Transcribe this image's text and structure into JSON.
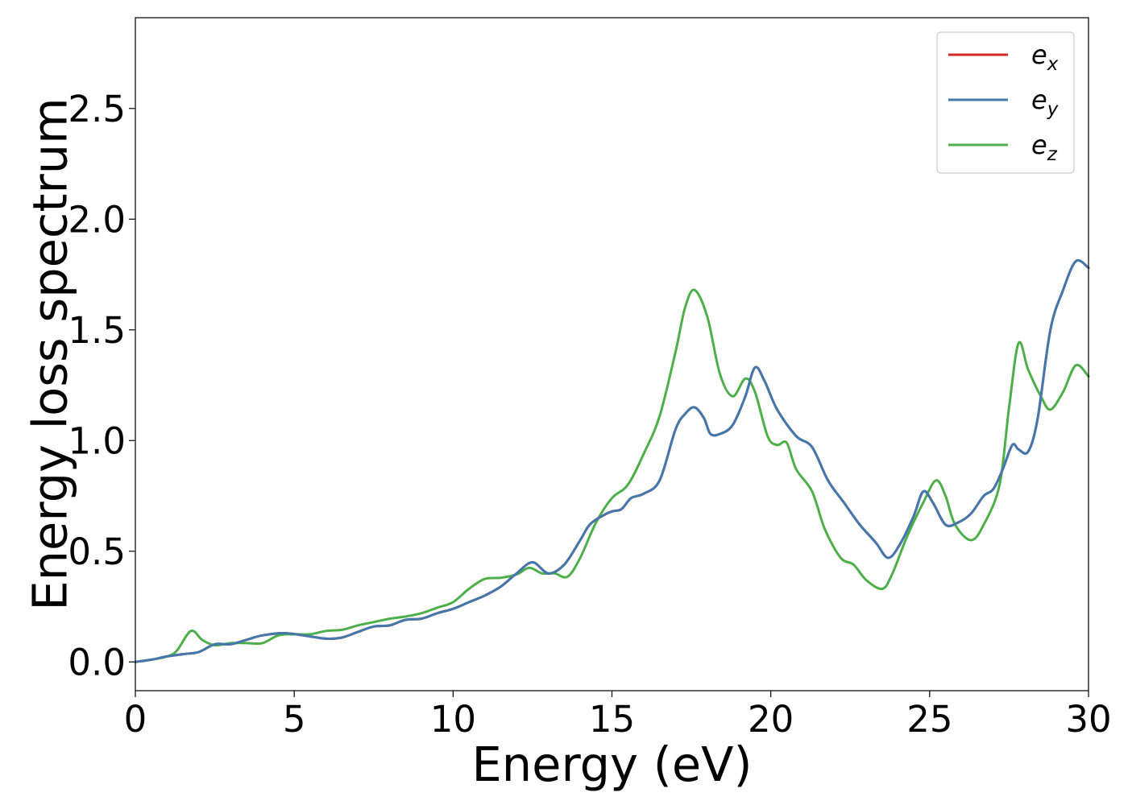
{
  "chart_data": {
    "type": "line",
    "title": "",
    "xlabel": "Energy (eV)",
    "ylabel": "Energy loss spectrum",
    "xlim": [
      0,
      30
    ],
    "ylim": [
      -0.13,
      2.91
    ],
    "xticks": [
      0,
      5,
      10,
      15,
      20,
      25,
      30
    ],
    "xtick_labels": [
      "0",
      "5",
      "10",
      "15",
      "20",
      "25",
      "30"
    ],
    "yticks": [
      0.0,
      0.5,
      1.0,
      1.5,
      2.0,
      2.5
    ],
    "ytick_labels": [
      "0.0",
      "0.5",
      "1.0",
      "1.5",
      "2.0",
      "2.5"
    ],
    "grid": false,
    "legend": {
      "position": "top-right"
    },
    "series": [
      {
        "name_main": "e",
        "name_sub": "x",
        "color": "#d62728",
        "points": [
          [
            0,
            0.0
          ],
          [
            0.5,
            0.01
          ],
          [
            1,
            0.025
          ],
          [
            1.5,
            0.035
          ],
          [
            2,
            0.045
          ],
          [
            2.5,
            0.08
          ],
          [
            3,
            0.08
          ],
          [
            3.5,
            0.1
          ],
          [
            4,
            0.12
          ],
          [
            4.7,
            0.13
          ],
          [
            5.5,
            0.115
          ],
          [
            6,
            0.105
          ],
          [
            6.5,
            0.11
          ],
          [
            7,
            0.135
          ],
          [
            7.5,
            0.16
          ],
          [
            8,
            0.165
          ],
          [
            8.5,
            0.19
          ],
          [
            9,
            0.195
          ],
          [
            9.5,
            0.22
          ],
          [
            10,
            0.24
          ],
          [
            10.5,
            0.27
          ],
          [
            11,
            0.3
          ],
          [
            11.5,
            0.34
          ],
          [
            12,
            0.4
          ],
          [
            12.5,
            0.45
          ],
          [
            13,
            0.4
          ],
          [
            13.5,
            0.44
          ],
          [
            14,
            0.55
          ],
          [
            14.3,
            0.62
          ],
          [
            14.7,
            0.66
          ],
          [
            15,
            0.68
          ],
          [
            15.3,
            0.69
          ],
          [
            15.6,
            0.74
          ],
          [
            16,
            0.76
          ],
          [
            16.5,
            0.82
          ],
          [
            17,
            1.05
          ],
          [
            17.3,
            1.12
          ],
          [
            17.6,
            1.15
          ],
          [
            17.9,
            1.1
          ],
          [
            18.1,
            1.03
          ],
          [
            18.4,
            1.03
          ],
          [
            18.8,
            1.07
          ],
          [
            19.2,
            1.2
          ],
          [
            19.5,
            1.33
          ],
          [
            19.8,
            1.27
          ],
          [
            20.2,
            1.14
          ],
          [
            20.8,
            1.02
          ],
          [
            21.3,
            0.97
          ],
          [
            21.8,
            0.82
          ],
          [
            22.3,
            0.72
          ],
          [
            22.8,
            0.62
          ],
          [
            23.3,
            0.54
          ],
          [
            23.7,
            0.47
          ],
          [
            24.1,
            0.54
          ],
          [
            24.5,
            0.66
          ],
          [
            24.8,
            0.77
          ],
          [
            25.1,
            0.72
          ],
          [
            25.5,
            0.62
          ],
          [
            25.9,
            0.63
          ],
          [
            26.3,
            0.67
          ],
          [
            26.7,
            0.75
          ],
          [
            27,
            0.78
          ],
          [
            27.3,
            0.87
          ],
          [
            27.6,
            0.98
          ],
          [
            27.8,
            0.96
          ],
          [
            28.1,
            0.95
          ],
          [
            28.4,
            1.1
          ],
          [
            28.8,
            1.5
          ],
          [
            29.2,
            1.68
          ],
          [
            29.6,
            1.81
          ],
          [
            30,
            1.78
          ]
        ]
      },
      {
        "name_main": "e",
        "name_sub": "y",
        "color": "#4378ac",
        "points": [
          [
            0,
            0.0
          ],
          [
            0.5,
            0.01
          ],
          [
            1,
            0.025
          ],
          [
            1.5,
            0.035
          ],
          [
            2,
            0.045
          ],
          [
            2.5,
            0.08
          ],
          [
            3,
            0.08
          ],
          [
            3.5,
            0.1
          ],
          [
            4,
            0.12
          ],
          [
            4.7,
            0.13
          ],
          [
            5.5,
            0.115
          ],
          [
            6,
            0.105
          ],
          [
            6.5,
            0.11
          ],
          [
            7,
            0.135
          ],
          [
            7.5,
            0.16
          ],
          [
            8,
            0.165
          ],
          [
            8.5,
            0.19
          ],
          [
            9,
            0.195
          ],
          [
            9.5,
            0.22
          ],
          [
            10,
            0.24
          ],
          [
            10.5,
            0.27
          ],
          [
            11,
            0.3
          ],
          [
            11.5,
            0.34
          ],
          [
            12,
            0.4
          ],
          [
            12.5,
            0.45
          ],
          [
            13,
            0.4
          ],
          [
            13.5,
            0.44
          ],
          [
            14,
            0.55
          ],
          [
            14.3,
            0.62
          ],
          [
            14.7,
            0.66
          ],
          [
            15,
            0.68
          ],
          [
            15.3,
            0.69
          ],
          [
            15.6,
            0.74
          ],
          [
            16,
            0.76
          ],
          [
            16.5,
            0.82
          ],
          [
            17,
            1.05
          ],
          [
            17.3,
            1.12
          ],
          [
            17.6,
            1.15
          ],
          [
            17.9,
            1.1
          ],
          [
            18.1,
            1.03
          ],
          [
            18.4,
            1.03
          ],
          [
            18.8,
            1.07
          ],
          [
            19.2,
            1.2
          ],
          [
            19.5,
            1.33
          ],
          [
            19.8,
            1.27
          ],
          [
            20.2,
            1.14
          ],
          [
            20.8,
            1.02
          ],
          [
            21.3,
            0.97
          ],
          [
            21.8,
            0.82
          ],
          [
            22.3,
            0.72
          ],
          [
            22.8,
            0.62
          ],
          [
            23.3,
            0.54
          ],
          [
            23.7,
            0.47
          ],
          [
            24.1,
            0.54
          ],
          [
            24.5,
            0.66
          ],
          [
            24.8,
            0.77
          ],
          [
            25.1,
            0.72
          ],
          [
            25.5,
            0.62
          ],
          [
            25.9,
            0.63
          ],
          [
            26.3,
            0.67
          ],
          [
            26.7,
            0.75
          ],
          [
            27,
            0.78
          ],
          [
            27.3,
            0.87
          ],
          [
            27.6,
            0.98
          ],
          [
            27.8,
            0.96
          ],
          [
            28.1,
            0.95
          ],
          [
            28.4,
            1.1
          ],
          [
            28.8,
            1.5
          ],
          [
            29.2,
            1.68
          ],
          [
            29.6,
            1.81
          ],
          [
            30,
            1.78
          ]
        ]
      },
      {
        "name_main": "e",
        "name_sub": "z",
        "color": "#4daf4a",
        "points": [
          [
            0,
            0.0
          ],
          [
            0.5,
            0.01
          ],
          [
            1,
            0.025
          ],
          [
            1.3,
            0.05
          ],
          [
            1.75,
            0.14
          ],
          [
            2.1,
            0.1
          ],
          [
            2.5,
            0.075
          ],
          [
            3,
            0.085
          ],
          [
            3.5,
            0.085
          ],
          [
            4,
            0.085
          ],
          [
            4.5,
            0.12
          ],
          [
            5,
            0.125
          ],
          [
            5.5,
            0.125
          ],
          [
            6,
            0.14
          ],
          [
            6.5,
            0.145
          ],
          [
            7,
            0.165
          ],
          [
            7.5,
            0.18
          ],
          [
            8,
            0.195
          ],
          [
            8.5,
            0.205
          ],
          [
            9,
            0.22
          ],
          [
            9.5,
            0.245
          ],
          [
            10,
            0.27
          ],
          [
            10.5,
            0.33
          ],
          [
            11,
            0.375
          ],
          [
            11.5,
            0.38
          ],
          [
            12,
            0.395
          ],
          [
            12.4,
            0.425
          ],
          [
            12.8,
            0.4
          ],
          [
            13.2,
            0.4
          ],
          [
            13.6,
            0.385
          ],
          [
            14,
            0.47
          ],
          [
            14.5,
            0.63
          ],
          [
            15,
            0.74
          ],
          [
            15.5,
            0.8
          ],
          [
            16,
            0.94
          ],
          [
            16.5,
            1.11
          ],
          [
            17,
            1.4
          ],
          [
            17.3,
            1.6
          ],
          [
            17.6,
            1.68
          ],
          [
            18,
            1.56
          ],
          [
            18.4,
            1.3
          ],
          [
            18.8,
            1.2
          ],
          [
            19.2,
            1.28
          ],
          [
            19.5,
            1.22
          ],
          [
            19.9,
            1.02
          ],
          [
            20.2,
            0.98
          ],
          [
            20.5,
            0.99
          ],
          [
            20.8,
            0.87
          ],
          [
            21.3,
            0.77
          ],
          [
            21.7,
            0.6
          ],
          [
            22.2,
            0.47
          ],
          [
            22.6,
            0.44
          ],
          [
            23,
            0.37
          ],
          [
            23.5,
            0.33
          ],
          [
            23.8,
            0.39
          ],
          [
            24.3,
            0.57
          ],
          [
            24.8,
            0.72
          ],
          [
            25.2,
            0.82
          ],
          [
            25.5,
            0.75
          ],
          [
            25.8,
            0.62
          ],
          [
            26.3,
            0.55
          ],
          [
            26.7,
            0.62
          ],
          [
            27.2,
            0.8
          ],
          [
            27.5,
            1.15
          ],
          [
            27.8,
            1.44
          ],
          [
            28.1,
            1.32
          ],
          [
            28.5,
            1.2
          ],
          [
            28.8,
            1.14
          ],
          [
            29.2,
            1.22
          ],
          [
            29.6,
            1.34
          ],
          [
            30,
            1.29
          ]
        ]
      }
    ]
  }
}
